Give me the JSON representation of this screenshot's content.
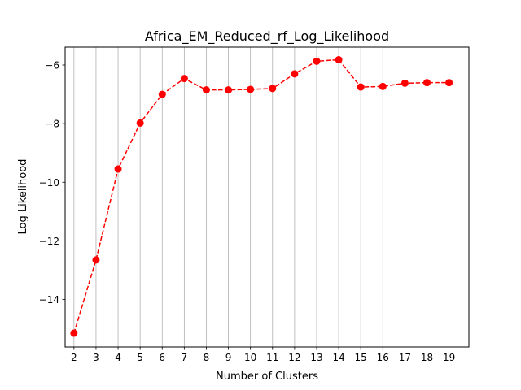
{
  "chart_data": {
    "type": "line",
    "title": "Africa_EM_Reduced_rf_Log_Likelihood",
    "xlabel": "Number of Clusters",
    "ylabel": "Log Likelihood",
    "x": [
      2,
      3,
      4,
      5,
      6,
      7,
      8,
      9,
      10,
      11,
      12,
      13,
      14,
      15,
      16,
      17,
      18,
      19
    ],
    "series": [
      {
        "name": "",
        "values": [
          -15.15,
          -12.65,
          -9.55,
          -7.98,
          -7.0,
          -6.46,
          -6.85,
          -6.85,
          -6.83,
          -6.8,
          -6.3,
          -5.87,
          -5.82,
          -6.75,
          -6.73,
          -6.62,
          -6.6,
          -6.6
        ],
        "color": "#ff0000",
        "linestyle": "dashed",
        "marker": "circle"
      }
    ],
    "xlim": [
      1.6,
      19.9
    ],
    "ylim": [
      -15.62,
      -5.39
    ],
    "yticks": [
      -14,
      -12,
      -10,
      -8,
      -6
    ],
    "ytick_labels": [
      "−14",
      "−12",
      "−10",
      "−8",
      "−6"
    ],
    "grid": "x"
  }
}
